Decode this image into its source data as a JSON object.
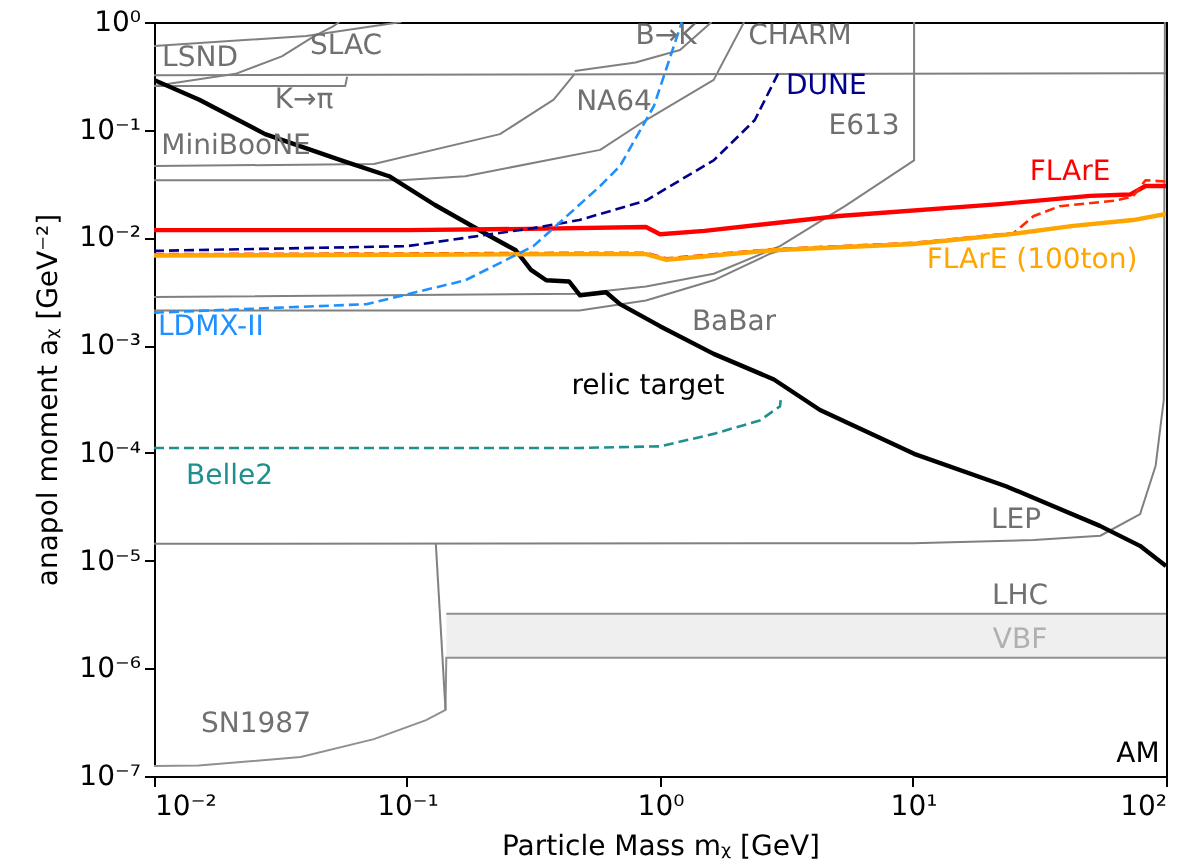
{
  "chart_data": {
    "type": "line",
    "xlabel": "Particle Mass mᵪ [GeV]",
    "ylabel": "anapol moment aᵪ [GeV⁻²]",
    "log": "xy",
    "xlim": [
      0.01,
      100
    ],
    "ylim": [
      1e-07,
      1
    ],
    "xticks": [
      {
        "value": 0.01,
        "label": "10⁻²"
      },
      {
        "value": 0.1,
        "label": "10⁻¹"
      },
      {
        "value": 1,
        "label": "10⁰"
      },
      {
        "value": 10,
        "label": "10¹"
      },
      {
        "value": 100,
        "label": "10²"
      }
    ],
    "yticks": [
      {
        "value": 1e-07,
        "label": "10⁻⁷"
      },
      {
        "value": 1e-06,
        "label": "10⁻⁶"
      },
      {
        "value": 1e-05,
        "label": "10⁻⁵"
      },
      {
        "value": 0.0001,
        "label": "10⁻⁴"
      },
      {
        "value": 0.001,
        "label": "10⁻³"
      },
      {
        "value": 0.01,
        "label": "10⁻²"
      },
      {
        "value": 0.1,
        "label": "10⁻¹"
      },
      {
        "value": 1,
        "label": "10⁰"
      }
    ],
    "series": [
      {
        "type": "area",
        "color": "#efefef",
        "x": [
          0.143,
          100
        ],
        "values": [
          3.2e-06,
          3.2e-06
        ]
      },
      {
        "type": "area",
        "color": "#ffffff",
        "x": [
          0.01,
          0.015,
          0.038,
          0.074,
          0.119,
          0.142,
          0.143,
          100
        ],
        "values": [
          1.24e-07,
          1.25e-07,
          1.5e-07,
          2.2e-07,
          3.3e-07,
          4.1e-07,
          1.25e-06,
          1.25e-06
        ]
      },
      {
        "color": "#808080",
        "line_style": "solid",
        "x": [
          0.142,
          0.13
        ],
        "values": [
          4.1e-07,
          1.43e-05
        ]
      },
      {
        "type": "line",
        "color": "#808080",
        "line_style": "solid",
        "x": [
          0.01,
          10,
          30,
          55,
          79,
          91,
          98,
          99
        ],
        "values": [
          1.43e-05,
          1.45e-05,
          1.55e-05,
          1.7e-05,
          2.7e-05,
          7.6e-05,
          0.00031,
          1
        ]
      },
      {
        "type": "line",
        "color": "#808080",
        "line_style": "solid",
        "x": [
          0.01,
          0.04,
          0.095
        ],
        "values": [
          0.6,
          0.74,
          1
        ]
      },
      {
        "type": "line",
        "color": "#808080",
        "line_style": "solid",
        "x": [
          0.01,
          0.021,
          0.032,
          0.043,
          0.051,
          0.054
        ],
        "values": [
          0.255,
          0.33,
          0.48,
          0.74,
          0.91,
          1
        ]
      },
      {
        "type": "line",
        "color": "#808080",
        "line_style": "solid",
        "x": [
          0.01,
          0.057,
          0.058
        ],
        "values": [
          0.254,
          0.254,
          0.31
        ]
      },
      {
        "type": "line",
        "color": "#808080",
        "line_style": "solid",
        "x": [
          0.01,
          100
        ],
        "values": [
          0.32,
          0.335
        ]
      },
      {
        "type": "line",
        "color": "#808080",
        "line_style": "solid",
        "x": [
          0.01,
          0.074,
          0.233,
          0.38,
          0.46
        ],
        "values": [
          0.046,
          0.048,
          0.091,
          0.19,
          0.33
        ]
      },
      {
        "type": "line",
        "color": "#808080",
        "line_style": "solid",
        "x": [
          0.01,
          0.094,
          0.17,
          0.58,
          0.88,
          1.63,
          2.15
        ],
        "values": [
          0.034,
          0.034,
          0.037,
          0.065,
          0.123,
          0.29,
          1
        ]
      },
      {
        "type": "line",
        "color": "#808080",
        "line_style": "solid",
        "x": [
          0.46,
          0.8,
          1.2,
          1.6
        ],
        "values": [
          0.35,
          0.42,
          0.55,
          1
        ]
      },
      {
        "type": "line",
        "color": "#808080",
        "line_style": "solid",
        "x": [
          10.1,
          10.1,
          5.4,
          2.98,
          1.63,
          0.88,
          0.48,
          0.01
        ],
        "values": [
          1,
          0.052,
          0.0196,
          0.0083,
          0.0046,
          0.0035,
          0.003,
          0.0028
        ]
      },
      {
        "type": "line",
        "color": "#808080",
        "line_style": "solid",
        "x": [
          0.01,
          0.48,
          0.88,
          1.63,
          2.7,
          3.0
        ],
        "values": [
          0.0021,
          0.0021,
          0.0026,
          0.004,
          0.007,
          0.0076
        ]
      },
      {
        "type": "line",
        "name": "relic target",
        "color": "#000000",
        "line_style": "solid",
        "x": [
          0.01,
          0.0151,
          0.0275,
          0.055,
          0.085,
          0.129,
          0.214,
          0.269,
          0.309,
          0.355,
          0.437,
          0.483,
          0.612,
          0.695,
          1.0,
          1.63,
          2.82,
          4.29,
          10.1,
          23.3,
          54.8,
          78.9,
          100
        ],
        "values": [
          0.29,
          0.19,
          0.091,
          0.052,
          0.037,
          0.02,
          0.0102,
          0.0076,
          0.005,
          0.004,
          0.0039,
          0.0029,
          0.0031,
          0.0024,
          0.0015,
          0.00083,
          0.00048,
          0.00025,
          9.8e-05,
          4.9e-05,
          2.1e-05,
          1.37e-05,
          8.9e-06
        ]
      },
      {
        "type": "line",
        "name": "FLArE",
        "color": "#ff0000",
        "line_style": "solid",
        "x": [
          0.01,
          0.1,
          0.3,
          0.88,
          1.0,
          1.5,
          5.1,
          22,
          50,
          72,
          83,
          100
        ],
        "values": [
          0.0117,
          0.0117,
          0.012,
          0.0125,
          0.0107,
          0.0115,
          0.0158,
          0.0204,
          0.0243,
          0.025,
          0.03,
          0.03
        ]
      },
      {
        "type": "line",
        "color": "#ff2a00",
        "line_style": "dashed",
        "x": [
          0.01,
          0.1,
          0.48,
          0.88,
          1.06,
          2.8,
          10,
          25,
          30,
          38,
          63,
          74,
          83,
          100
        ],
        "values": [
          0.007,
          0.0071,
          0.0072,
          0.0072,
          0.0064,
          0.0078,
          0.0089,
          0.011,
          0.0158,
          0.0195,
          0.022,
          0.024,
          0.034,
          0.033
        ]
      },
      {
        "type": "line",
        "name": "FLArE (100ton)",
        "color": "#ffa500",
        "line_style": "solid",
        "x": [
          0.01,
          0.1,
          0.48,
          0.88,
          1.06,
          2.8,
          10,
          25,
          43,
          74,
          100
        ],
        "values": [
          0.0068,
          0.0069,
          0.007,
          0.007,
          0.0062,
          0.0076,
          0.0087,
          0.0108,
          0.0128,
          0.0145,
          0.0165
        ]
      },
      {
        "type": "line",
        "name": "DUNE",
        "color": "#00008b",
        "line_style": "dashed",
        "x": [
          0.01,
          0.1,
          0.316,
          0.48,
          0.88,
          1.63,
          2.37,
          2.98
        ],
        "values": [
          0.0075,
          0.0083,
          0.0122,
          0.0145,
          0.022,
          0.052,
          0.123,
          0.36
        ]
      },
      {
        "type": "line",
        "name": "LDMX-II",
        "color": "#1e90ff",
        "line_style": "dashed",
        "x": [
          0.01,
          0.069,
          0.17,
          0.316,
          0.58,
          0.695,
          0.946,
          1.22
        ],
        "values": [
          0.002,
          0.0024,
          0.004,
          0.0083,
          0.03,
          0.046,
          0.166,
          1
        ]
      },
      {
        "type": "line",
        "name": "Belle2",
        "color": "#20908e",
        "line_style": "dashed",
        "x": [
          0.01,
          0.48,
          1.0,
          1.63,
          2.48,
          2.98,
          3.0
        ],
        "values": [
          0.000111,
          0.000111,
          0.000115,
          0.00015,
          0.0002,
          0.00027,
          0.00031
        ]
      }
    ],
    "annotations": [
      "LSND",
      "SLAC",
      "K→π",
      "MiniBooNE",
      "NA64",
      "B→K",
      "CHARM",
      "E613",
      "BaBar",
      "LEP",
      "LHC",
      "VBF",
      "SN1987",
      "AM"
    ]
  }
}
